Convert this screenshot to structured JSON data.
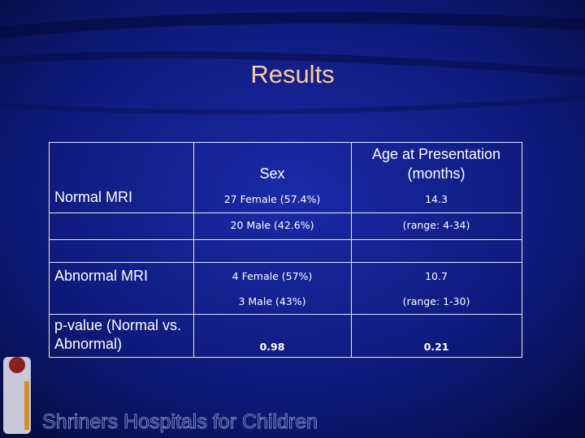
{
  "title": "Results",
  "table": {
    "header": [
      "Sex",
      "Age at Presentation (months)"
    ],
    "groups": [
      {
        "label": "Normal MRI",
        "sex": [
          "27 Female (57.4%)",
          "20 Male (42.6%)"
        ],
        "age": [
          "14.3",
          "(range: 4-34)"
        ]
      },
      {
        "label": "Abnormal MRI",
        "sex": [
          "4 Female (57%)",
          "3 Male (43%)"
        ],
        "age": [
          "10.7",
          "(range: 1-30)"
        ]
      }
    ],
    "pvalue": {
      "label": "p-value (Normal vs. Abnormal)",
      "sex": "0.98",
      "age": "0.21"
    }
  },
  "footer": "Shriners Hospitals for Children"
}
